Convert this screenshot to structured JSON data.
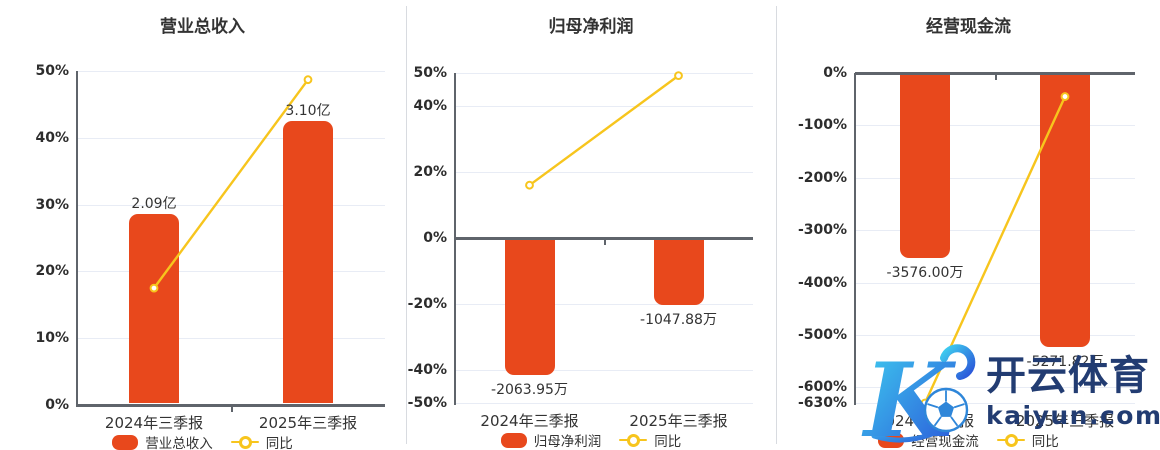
{
  "page": {
    "background": "#ffffff"
  },
  "colors": {
    "bar": "#e8481c",
    "line": "#f7c51d",
    "gridline": "#e8ecf5",
    "axis": "#5f646b",
    "text": "#333333",
    "watermark_blue": "#223c72"
  },
  "watermark": {
    "brand_text": "开云体育",
    "domain_text": "kaiyun.com",
    "logo_icon": "kaiyun-k-soccer-ball-logo"
  },
  "chart_data": [
    {
      "type": "bar+line",
      "title": "营业总收入",
      "categories": [
        "2024年三季报",
        "2025年三季报"
      ],
      "y_axis": {
        "min": 0,
        "max": 50,
        "zero": 0,
        "unit": "%",
        "ticks": [
          {
            "label": "50%",
            "value": 50
          },
          {
            "label": "40%",
            "value": 40
          },
          {
            "label": "30%",
            "value": 30
          },
          {
            "label": "20%",
            "value": 20
          },
          {
            "label": "10%",
            "value": 10
          },
          {
            "label": "0%",
            "value": 0
          }
        ]
      },
      "bars": {
        "name": "营业总收入",
        "color": "#e8481c",
        "points": [
          {
            "category": "2024年三季报",
            "label": "2.09亿",
            "axis_pct": 28.6
          },
          {
            "category": "2025年三季报",
            "label": "3.10亿",
            "axis_pct": 42.5
          }
        ]
      },
      "line": {
        "name": "同比",
        "color": "#f7c51d",
        "points_pct": [
          17.5,
          48.7
        ]
      },
      "legend": [
        "营业总收入",
        "同比"
      ]
    },
    {
      "type": "bar+line",
      "title": "归母净利润",
      "categories": [
        "2024年三季报",
        "2025年三季报"
      ],
      "y_axis": {
        "min": -50,
        "max": 50,
        "zero": 0,
        "unit": "%",
        "ticks": [
          {
            "label": "50%",
            "value": 50
          },
          {
            "label": "40%",
            "value": 40
          },
          {
            "label": "20%",
            "value": 20
          },
          {
            "label": "0%",
            "value": 0
          },
          {
            "label": "-20%",
            "value": -20
          },
          {
            "label": "-40%",
            "value": -40
          },
          {
            "label": "-50%",
            "value": -50
          }
        ]
      },
      "bars": {
        "name": "归母净利润",
        "color": "#e8481c",
        "points": [
          {
            "category": "2024年三季报",
            "label": "-2063.95万",
            "axis_pct": -41.5
          },
          {
            "category": "2025年三季报",
            "label": "-1047.88万",
            "axis_pct": -20.4
          }
        ]
      },
      "line": {
        "name": "同比",
        "color": "#f7c51d",
        "points_pct": [
          16,
          49.2
        ]
      },
      "legend": [
        "归母净利润",
        "同比"
      ]
    },
    {
      "type": "bar+line",
      "title": "经营现金流",
      "categories": [
        "2024年三季报",
        "2025年三季报"
      ],
      "y_axis": {
        "min": -630,
        "max": 0,
        "zero": 0,
        "unit": "%",
        "ticks": [
          {
            "label": "0%",
            "value": 0
          },
          {
            "label": "-100%",
            "value": -100
          },
          {
            "label": "-200%",
            "value": -200
          },
          {
            "label": "-300%",
            "value": -300
          },
          {
            "label": "-400%",
            "value": -400
          },
          {
            "label": "-500%",
            "value": -500
          },
          {
            "label": "-600%",
            "value": -600
          },
          {
            "label": "-630%",
            "value": -630
          }
        ]
      },
      "bars": {
        "name": "经营现金流",
        "color": "#e8481c",
        "points": [
          {
            "category": "2024年三季报",
            "label": "-3576.00万",
            "axis_pct": -353
          },
          {
            "category": "2025年三季报",
            "label": "-5271.82万",
            "axis_pct": -524
          }
        ]
      },
      "line": {
        "name": "同比",
        "color": "#f7c51d",
        "points_pct": [
          -630,
          -45
        ]
      },
      "legend": [
        "经营现金流",
        "同比"
      ]
    }
  ]
}
